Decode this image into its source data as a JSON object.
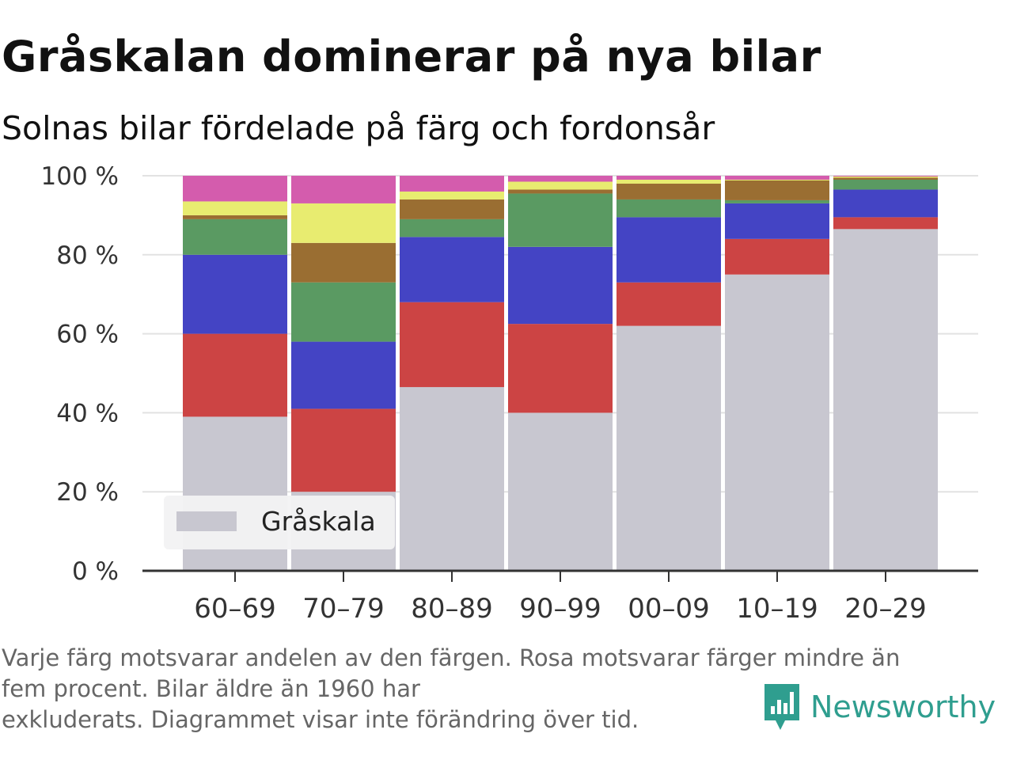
{
  "title": "Gråskalan dominerar på nya bilar",
  "subtitle": "Solnas bilar fördelade på färg och fordonsår",
  "footnote": [
    "Varje färg motsvarar andelen av den färgen. Rosa motsvarar färger mindre än",
    "fem procent. Bilar äldre än 1960 har",
    "exkluderats. Diagrammet visar inte förändring över tid."
  ],
  "brand": {
    "name": "Newsworthy",
    "color": "#2f9e8f",
    "icon": "newsworthy-logo-icon"
  },
  "chart_data": {
    "type": "bar",
    "stacked": true,
    "categories": [
      "60–69",
      "70–79",
      "80–89",
      "90–99",
      "00–09",
      "10–19",
      "20–29"
    ],
    "ylim": [
      0,
      100
    ],
    "yticks": [
      0,
      20,
      40,
      60,
      80,
      100
    ],
    "ytick_labels": [
      "0 %",
      "20 %",
      "40 %",
      "60 %",
      "80 %",
      "100 %"
    ],
    "grid": true,
    "legend": {
      "placement": "bottom-left",
      "entries": [
        "Gråskala"
      ]
    },
    "series": [
      {
        "name": "Gråskala",
        "color": "#c8c7d0",
        "values": [
          39,
          20,
          46.5,
          40,
          62,
          75,
          86.5
        ]
      },
      {
        "color": "#cc4444",
        "values": [
          21,
          21,
          21.5,
          22.5,
          11,
          9,
          3
        ]
      },
      {
        "color": "#4444c4",
        "values": [
          20,
          17,
          16.5,
          19.5,
          16.5,
          9,
          7
        ]
      },
      {
        "color": "#5a9a62",
        "values": [
          9,
          15,
          4.5,
          13.5,
          4.5,
          0.8,
          2.5
        ]
      },
      {
        "color": "#9a6e32",
        "values": [
          1,
          10,
          5,
          1,
          4,
          5,
          0.5
        ]
      },
      {
        "color": "#e8ec70",
        "values": [
          3.5,
          10,
          2,
          2,
          1,
          0.2,
          0.3
        ]
      },
      {
        "color": "#d45cad",
        "values": [
          6.5,
          7,
          4,
          1.5,
          1,
          1,
          0.2
        ]
      }
    ]
  }
}
